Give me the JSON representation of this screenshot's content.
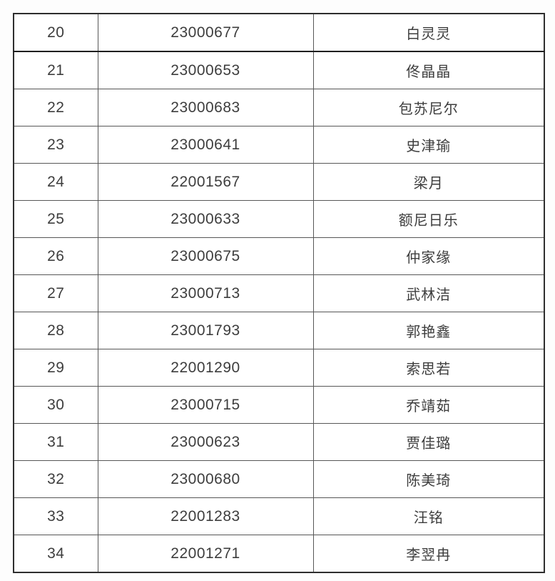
{
  "table": {
    "rows": [
      [
        "20",
        "23000677",
        "白灵灵"
      ],
      [
        "21",
        "23000653",
        "佟晶晶"
      ],
      [
        "22",
        "23000683",
        "包苏尼尔"
      ],
      [
        "23",
        "23000641",
        "史津瑜"
      ],
      [
        "24",
        "22001567",
        "梁月"
      ],
      [
        "25",
        "23000633",
        "额尼日乐"
      ],
      [
        "26",
        "23000675",
        "仲家缘"
      ],
      [
        "27",
        "23000713",
        "武林洁"
      ],
      [
        "28",
        "23001793",
        "郭艳鑫"
      ],
      [
        "29",
        "22001290",
        "索思若"
      ],
      [
        "30",
        "23000715",
        "乔靖茹"
      ],
      [
        "31",
        "23000623",
        "贾佳璐"
      ],
      [
        "32",
        "23000680",
        "陈美琦"
      ],
      [
        "33",
        "22001283",
        "汪铭"
      ],
      [
        "34",
        "22001271",
        "李翌冉"
      ]
    ]
  }
}
